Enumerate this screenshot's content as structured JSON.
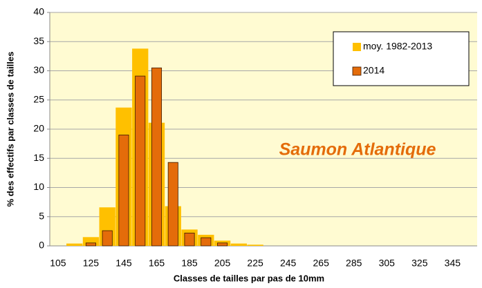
{
  "chart_data": {
    "type": "bar",
    "annotation": "Saumon Atlantique",
    "x_label": "Classes de tailles par pas de 10mm",
    "y_label": "% des effectifs par classes de tailles",
    "categories": [
      "105",
      null,
      "125",
      null,
      "145",
      null,
      "165",
      null,
      "185",
      null,
      "205",
      null,
      "225",
      null,
      "245",
      null,
      "265",
      null,
      "285",
      null,
      "305",
      null,
      "325",
      null,
      "345",
      null
    ],
    "series": [
      {
        "name": "moy. 1982-2013",
        "color": "#ffc000",
        "values": [
          0,
          0.4,
          1.5,
          6.6,
          23.7,
          33.8,
          21.1,
          6.8,
          2.8,
          1.9,
          0.9,
          0.4,
          0.2,
          0,
          0,
          0,
          0,
          0,
          0,
          0,
          0,
          0,
          0,
          0,
          0,
          0
        ]
      },
      {
        "name": "2014",
        "color": "#e46c0a",
        "values": [
          0,
          0,
          0.5,
          2.6,
          19,
          29.1,
          30.5,
          14.3,
          2.2,
          1.4,
          0.5,
          0,
          0,
          0,
          0,
          0,
          0,
          0,
          0,
          0,
          0,
          0,
          0,
          0,
          0,
          0
        ]
      }
    ],
    "ylim": [
      0,
      40
    ],
    "yticks": [
      0,
      5,
      10,
      15,
      20,
      25,
      30,
      35,
      40
    ],
    "grid": true,
    "legend": "top-right"
  }
}
